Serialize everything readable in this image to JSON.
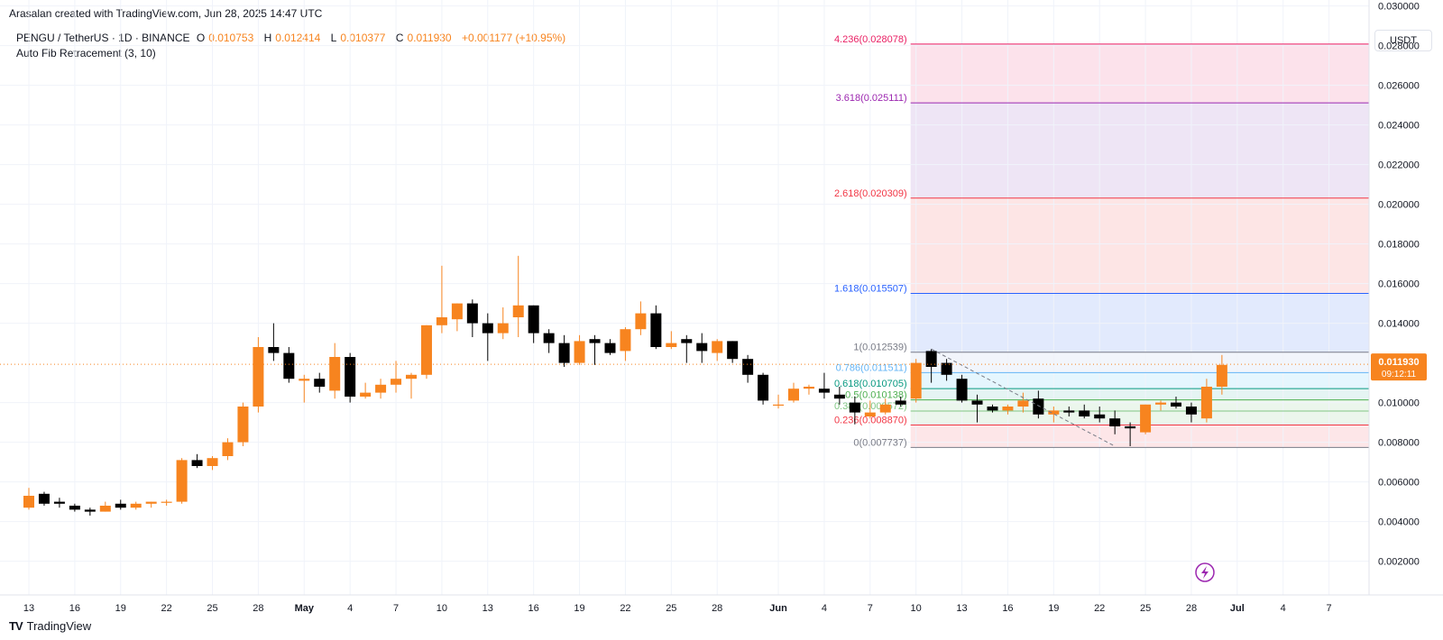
{
  "header": {
    "credit": "Arasalan created with TradingView.com, Jun 28, 2025 14:47 UTC"
  },
  "legend": {
    "symbol": "PENGU / TetherUS · 1D · BINANCE",
    "o_label": "O",
    "o_value": "0.010753",
    "h_label": "H",
    "h_value": "0.012414",
    "l_label": "L",
    "l_value": "0.010377",
    "c_label": "C",
    "c_value": "0.011930",
    "change": "+0.001177 (+10.95%)"
  },
  "indicator": {
    "label": "Auto Fib Retracement (3, 10)"
  },
  "toolbar": {
    "currency": "USDT"
  },
  "brand": {
    "name": "TradingView",
    "logo": "TV"
  },
  "colors": {
    "up": "#f7841f",
    "down": "#000000",
    "accent": "#f7841f"
  },
  "chart_data": {
    "type": "candlestick",
    "title": "PENGU / TetherUS · 1D · BINANCE",
    "ylim": [
      0.0003,
      0.0303
    ],
    "y_ticks": [
      {
        "v": 0.002,
        "label": "0.002000"
      },
      {
        "v": 0.004,
        "label": "0.004000"
      },
      {
        "v": 0.006,
        "label": "0.006000"
      },
      {
        "v": 0.008,
        "label": "0.008000"
      },
      {
        "v": 0.01,
        "label": "0.010000"
      },
      {
        "v": 0.014,
        "label": "0.014000"
      },
      {
        "v": 0.016,
        "label": "0.016000"
      },
      {
        "v": 0.018,
        "label": "0.018000"
      },
      {
        "v": 0.02,
        "label": "0.020000"
      },
      {
        "v": 0.022,
        "label": "0.022000"
      },
      {
        "v": 0.024,
        "label": "0.024000"
      },
      {
        "v": 0.026,
        "label": "0.026000"
      },
      {
        "v": 0.028,
        "label": "0.028000"
      },
      {
        "v": 0.03,
        "label": "0.030000"
      }
    ],
    "x_ticks": [
      {
        "i": 0,
        "label": "13"
      },
      {
        "i": 3,
        "label": "16"
      },
      {
        "i": 6,
        "label": "19"
      },
      {
        "i": 9,
        "label": "22"
      },
      {
        "i": 12,
        "label": "25"
      },
      {
        "i": 15,
        "label": "28"
      },
      {
        "i": 18,
        "label": "May"
      },
      {
        "i": 21,
        "label": "4"
      },
      {
        "i": 24,
        "label": "7"
      },
      {
        "i": 27,
        "label": "10"
      },
      {
        "i": 30,
        "label": "13"
      },
      {
        "i": 33,
        "label": "16"
      },
      {
        "i": 36,
        "label": "19"
      },
      {
        "i": 39,
        "label": "22"
      },
      {
        "i": 42,
        "label": "25"
      },
      {
        "i": 45,
        "label": "28"
      },
      {
        "i": 49,
        "label": "Jun"
      },
      {
        "i": 52,
        "label": "4"
      },
      {
        "i": 55,
        "label": "7"
      },
      {
        "i": 58,
        "label": "10"
      },
      {
        "i": 61,
        "label": "13"
      },
      {
        "i": 64,
        "label": "16"
      },
      {
        "i": 67,
        "label": "19"
      },
      {
        "i": 70,
        "label": "22"
      },
      {
        "i": 73,
        "label": "25"
      },
      {
        "i": 76,
        "label": "28"
      },
      {
        "i": 79,
        "label": "Jul"
      },
      {
        "i": 82,
        "label": "4"
      },
      {
        "i": 85,
        "label": "7"
      }
    ],
    "candles": [
      [
        0.0047,
        0.0057,
        0.0046,
        0.0053
      ],
      [
        0.0054,
        0.0055,
        0.0048,
        0.0049
      ],
      [
        0.005,
        0.0052,
        0.0047,
        0.0049
      ],
      [
        0.0048,
        0.0049,
        0.0045,
        0.0046
      ],
      [
        0.0046,
        0.0047,
        0.0043,
        0.0045
      ],
      [
        0.0045,
        0.005,
        0.0045,
        0.0048
      ],
      [
        0.0049,
        0.0051,
        0.0046,
        0.0047
      ],
      [
        0.0047,
        0.005,
        0.0046,
        0.0049
      ],
      [
        0.0049,
        0.005,
        0.0047,
        0.005
      ],
      [
        0.005,
        0.0051,
        0.0048,
        0.005
      ],
      [
        0.005,
        0.0072,
        0.0049,
        0.0071
      ],
      [
        0.0071,
        0.0074,
        0.0067,
        0.0068
      ],
      [
        0.0068,
        0.0073,
        0.0066,
        0.0072
      ],
      [
        0.0073,
        0.0082,
        0.0071,
        0.008
      ],
      [
        0.008,
        0.01,
        0.0078,
        0.0098
      ],
      [
        0.0098,
        0.0133,
        0.0095,
        0.0128
      ],
      [
        0.0128,
        0.014,
        0.0121,
        0.0125
      ],
      [
        0.0125,
        0.0128,
        0.011,
        0.0112
      ],
      [
        0.0111,
        0.0114,
        0.01,
        0.0112
      ],
      [
        0.0112,
        0.0115,
        0.0105,
        0.0108
      ],
      [
        0.0106,
        0.013,
        0.0102,
        0.0123
      ],
      [
        0.0123,
        0.0125,
        0.01,
        0.0103
      ],
      [
        0.0103,
        0.011,
        0.0102,
        0.0105
      ],
      [
        0.0105,
        0.0112,
        0.0102,
        0.0109
      ],
      [
        0.0109,
        0.0121,
        0.0105,
        0.0112
      ],
      [
        0.0112,
        0.0115,
        0.0102,
        0.0114
      ],
      [
        0.0114,
        0.0139,
        0.0112,
        0.0139
      ],
      [
        0.0139,
        0.0169,
        0.0135,
        0.0143
      ],
      [
        0.0142,
        0.015,
        0.0136,
        0.015
      ],
      [
        0.015,
        0.0152,
        0.0133,
        0.014
      ],
      [
        0.014,
        0.0145,
        0.0121,
        0.0135
      ],
      [
        0.0135,
        0.0148,
        0.0132,
        0.014
      ],
      [
        0.0143,
        0.0174,
        0.0133,
        0.0149
      ],
      [
        0.0149,
        0.0149,
        0.013,
        0.0135
      ],
      [
        0.0135,
        0.0137,
        0.0125,
        0.013
      ],
      [
        0.013,
        0.0134,
        0.0118,
        0.012
      ],
      [
        0.012,
        0.0134,
        0.0119,
        0.0131
      ],
      [
        0.0132,
        0.0134,
        0.0119,
        0.013
      ],
      [
        0.013,
        0.0132,
        0.0124,
        0.0125
      ],
      [
        0.0126,
        0.0138,
        0.0121,
        0.0137
      ],
      [
        0.0137,
        0.0151,
        0.0134,
        0.0145
      ],
      [
        0.0145,
        0.0149,
        0.0127,
        0.0128
      ],
      [
        0.0128,
        0.0136,
        0.0127,
        0.013
      ],
      [
        0.0132,
        0.0134,
        0.012,
        0.013
      ],
      [
        0.013,
        0.0135,
        0.012,
        0.0126
      ],
      [
        0.0125,
        0.0132,
        0.0121,
        0.0131
      ],
      [
        0.0131,
        0.0131,
        0.012,
        0.0122
      ],
      [
        0.0122,
        0.0124,
        0.011,
        0.0114
      ],
      [
        0.0114,
        0.0115,
        0.0099,
        0.0101
      ],
      [
        0.0099,
        0.0104,
        0.0097,
        0.0099
      ],
      [
        0.0101,
        0.011,
        0.01,
        0.0107
      ],
      [
        0.0107,
        0.0109,
        0.0104,
        0.0108
      ],
      [
        0.0107,
        0.0115,
        0.0102,
        0.0105
      ],
      [
        0.0104,
        0.0108,
        0.0099,
        0.0102
      ],
      [
        0.01,
        0.0103,
        0.0089,
        0.0095
      ],
      [
        0.0093,
        0.0101,
        0.0092,
        0.0095
      ],
      [
        0.0095,
        0.0102,
        0.0094,
        0.0099
      ],
      [
        0.0101,
        0.0103,
        0.0098,
        0.0099
      ],
      [
        0.0102,
        0.0122,
        0.01,
        0.012
      ],
      [
        0.0126,
        0.0127,
        0.011,
        0.0118
      ],
      [
        0.012,
        0.0122,
        0.0111,
        0.0114
      ],
      [
        0.0112,
        0.0114,
        0.01,
        0.0101
      ],
      [
        0.0101,
        0.0104,
        0.009,
        0.0099
      ],
      [
        0.0098,
        0.0099,
        0.0095,
        0.0096
      ],
      [
        0.0096,
        0.0099,
        0.0094,
        0.0098
      ],
      [
        0.0098,
        0.0105,
        0.0095,
        0.0101
      ],
      [
        0.0102,
        0.0106,
        0.0092,
        0.0094
      ],
      [
        0.0094,
        0.0098,
        0.009,
        0.0096
      ],
      [
        0.0096,
        0.0098,
        0.0093,
        0.0095
      ],
      [
        0.0096,
        0.0099,
        0.0092,
        0.0093
      ],
      [
        0.0094,
        0.0098,
        0.009,
        0.0092
      ],
      [
        0.0092,
        0.0096,
        0.0084,
        0.0088
      ],
      [
        0.0088,
        0.009,
        0.0078,
        0.0087
      ],
      [
        0.0085,
        0.0099,
        0.0084,
        0.0099
      ],
      [
        0.0099,
        0.0101,
        0.0096,
        0.01
      ],
      [
        0.01,
        0.0103,
        0.0097,
        0.0098
      ],
      [
        0.0098,
        0.01,
        0.009,
        0.0094
      ],
      [
        0.0092,
        0.0112,
        0.009,
        0.0108
      ],
      [
        0.0108,
        0.0124,
        0.0104,
        0.0119
      ]
    ],
    "fib_levels": [
      {
        "level": "0",
        "value": 0.007737,
        "label": "0(0.007737)",
        "color": "#787b86",
        "fill": "#fde2e4"
      },
      {
        "level": "0.236",
        "value": 0.00887,
        "label": "0.236(0.008870)",
        "color": "#f23645",
        "fill": "#e8f5e9"
      },
      {
        "level": "0.382",
        "value": 0.009572,
        "label": "0.382(0.009572)",
        "color": "#81c784",
        "fill": "#e8f5e9"
      },
      {
        "level": "0.5",
        "value": 0.010138,
        "label": "0.5(0.010138)",
        "color": "#4caf50",
        "fill": "#e0f2f1"
      },
      {
        "level": "0.618",
        "value": 0.010705,
        "label": "0.618(0.010705)",
        "color": "#089981",
        "fill": "#e1f5fe"
      },
      {
        "level": "0.786",
        "value": 0.011511,
        "label": "0.786(0.011511)",
        "color": "#64b5f6",
        "fill": "#f0f3fa"
      },
      {
        "level": "1",
        "value": 0.012539,
        "label": "1(0.012539)",
        "color": "#787b86",
        "fill": "#dde6fd"
      },
      {
        "level": "1.618",
        "value": 0.015507,
        "label": "1.618(0.015507)",
        "color": "#2962ff",
        "fill": "#fde0e0"
      },
      {
        "level": "2.618",
        "value": 0.020309,
        "label": "2.618(0.020309)",
        "color": "#f23645",
        "fill": "#ebe0f3"
      },
      {
        "level": "3.618",
        "value": 0.025111,
        "label": "3.618(0.025111)",
        "color": "#9c27b0",
        "fill": "#fcdde7"
      },
      {
        "level": "4.236",
        "value": 0.028078,
        "label": "4.236(0.028078)",
        "color": "#e91e63",
        "fill": null
      }
    ],
    "fib_start_index": 58,
    "fib_trend": [
      {
        "i": 59,
        "v": 0.0127
      },
      {
        "i": 71,
        "v": 0.0078
      }
    ],
    "last_price": {
      "value": 0.01193,
      "label": "0.011930",
      "countdown": "09:12:11"
    }
  }
}
